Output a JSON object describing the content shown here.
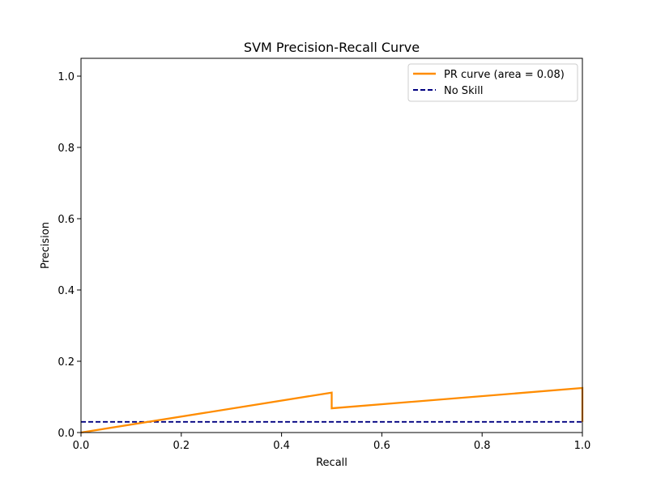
{
  "chart_data": {
    "type": "line",
    "title": "SVM Precision-Recall Curve",
    "xlabel": "Recall",
    "ylabel": "Precision",
    "xlim": [
      0.0,
      1.0
    ],
    "ylim": [
      0.0,
      1.05
    ],
    "xticks": [
      0.0,
      0.2,
      0.4,
      0.6,
      0.8,
      1.0
    ],
    "xtick_labels": [
      "0.0",
      "0.2",
      "0.4",
      "0.6",
      "0.8",
      "1.0"
    ],
    "yticks": [
      0.0,
      0.2,
      0.4,
      0.6,
      0.8,
      1.0
    ],
    "ytick_labels": [
      "0.0",
      "0.2",
      "0.4",
      "0.6",
      "0.8",
      "1.0"
    ],
    "grid": false,
    "legend_position": "top-right",
    "series": [
      {
        "name": "PR curve (area = 0.08)",
        "style": "solid",
        "color": "#ff8c00",
        "x": [
          0.0,
          0.5,
          0.5,
          1.0,
          1.0
        ],
        "y": [
          0.0,
          0.112,
          0.068,
          0.125,
          0.03
        ]
      },
      {
        "name": "No Skill",
        "style": "dashed",
        "color": "#000080",
        "x": [
          0.0,
          1.0
        ],
        "y": [
          0.03,
          0.03
        ]
      }
    ]
  }
}
